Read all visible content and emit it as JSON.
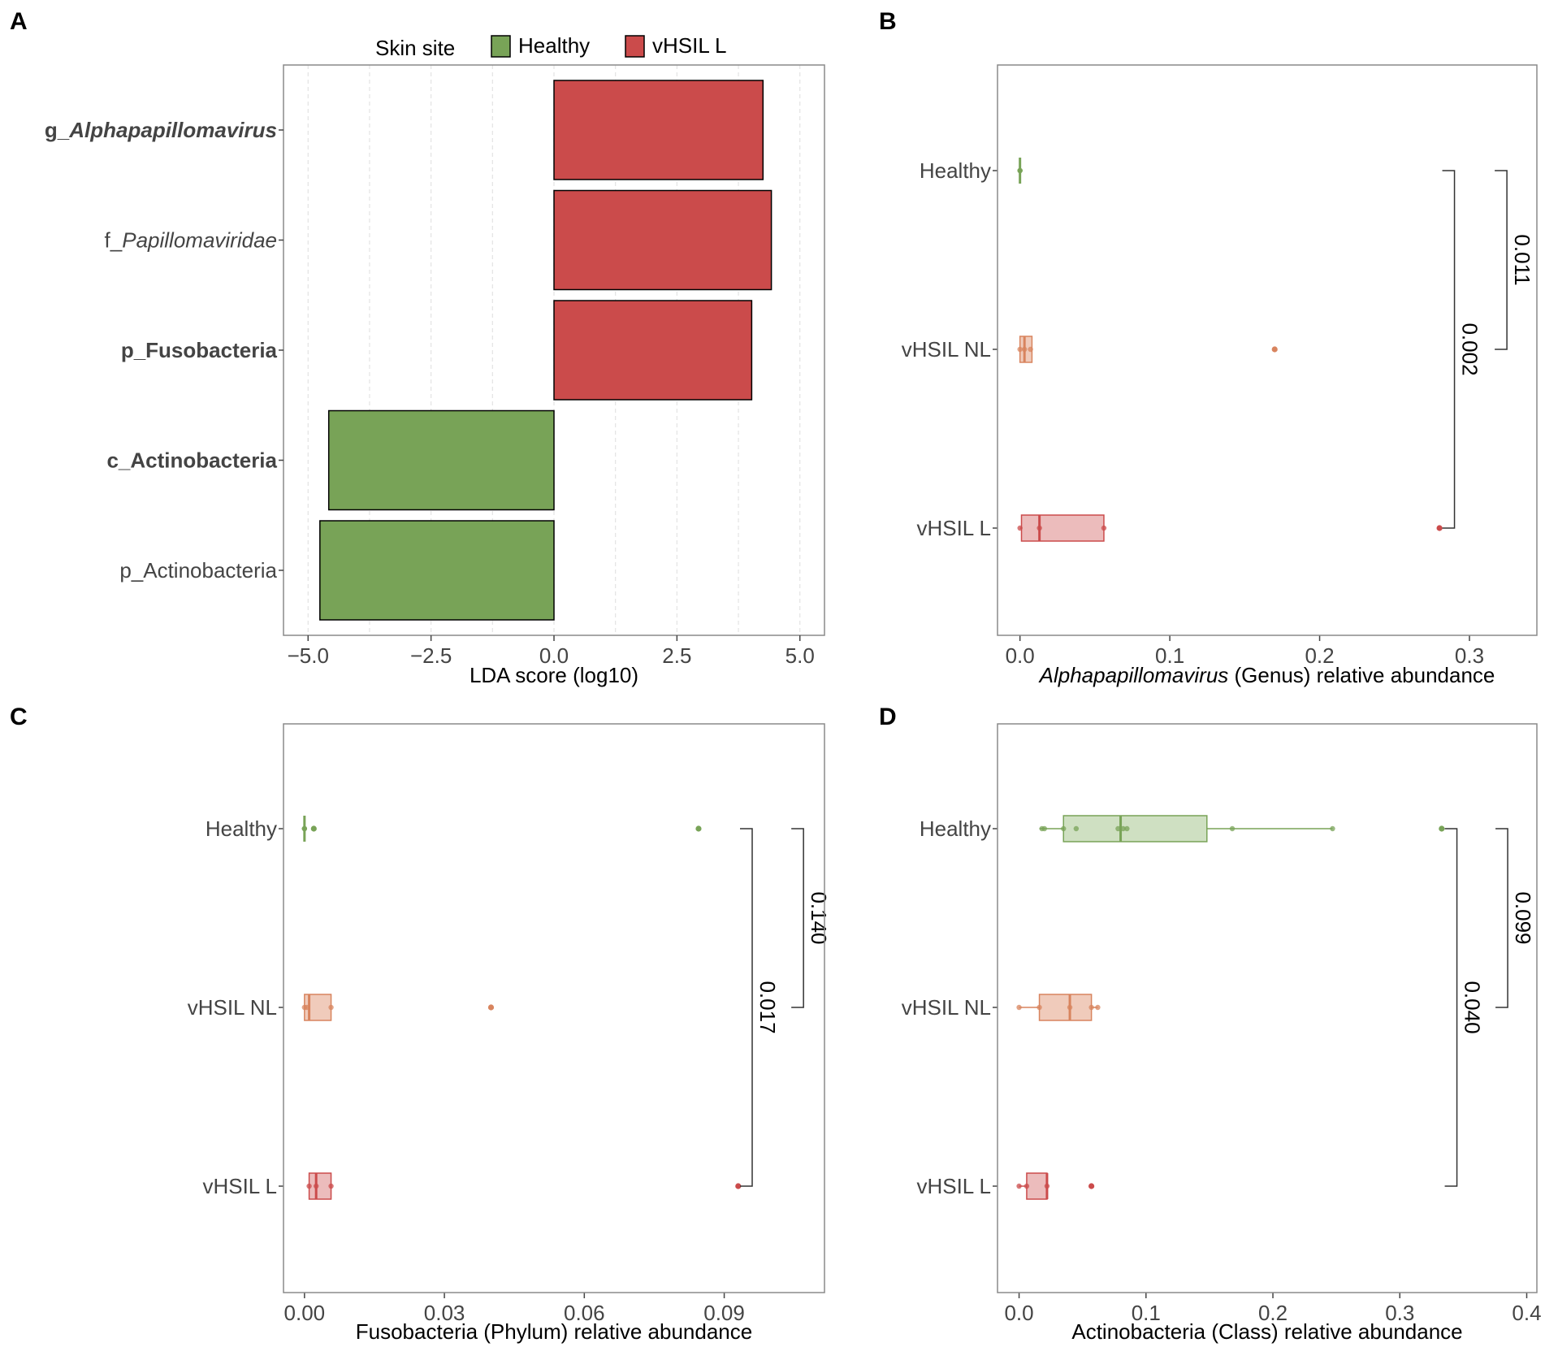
{
  "figure": {
    "panel_labels": [
      "A",
      "B",
      "C",
      "D"
    ]
  },
  "colors": {
    "healthy": "#78a357",
    "vhsil_nl": "#d8845e",
    "vhsil_l": "#cb4b4b",
    "healthy_fill": "#cfe0c2",
    "vhsil_nl_fill": "#f0cbbb",
    "vhsil_l_fill": "#ecbcbc",
    "axis": "#444444",
    "frame": "#8a8a8a",
    "grid": "#e3e3e3"
  },
  "chart_data": [
    {
      "panel": "A",
      "type": "bar",
      "orientation": "horizontal",
      "title": "",
      "categories": [
        "g_Alphapapillomavirus",
        "f_Papillomaviridae",
        "p_Fusobacteria",
        "c_Actinobacteria",
        "p_Actinobacteria"
      ],
      "category_labels": [
        {
          "prefix": "g_",
          "name": "Alphapapillomavirus",
          "italic": true,
          "bold": true
        },
        {
          "prefix": "f_",
          "name": "Papillomaviridae",
          "italic": true,
          "bold": false
        },
        {
          "prefix": "",
          "name": "p_Fusobacteria",
          "italic": false,
          "bold": true
        },
        {
          "prefix": "",
          "name": "c_Actinobacteria",
          "italic": false,
          "bold": true
        },
        {
          "prefix": "",
          "name": "p_Actinobacteria",
          "italic": false,
          "bold": false
        }
      ],
      "values": [
        4.25,
        4.42,
        4.02,
        -4.58,
        -4.76
      ],
      "groups": [
        "vHSIL L",
        "vHSIL L",
        "vHSIL L",
        "Healthy",
        "Healthy"
      ],
      "xlabel": "LDA score (log10)",
      "ylabel": "",
      "xlim": [
        -5.5,
        5.5
      ],
      "xticks": [
        -5.0,
        -2.5,
        0.0,
        2.5,
        5.0
      ],
      "xtick_labels": [
        "−5.0",
        "−2.5",
        "0.0",
        "2.5",
        "5.0"
      ],
      "grid": "vertical dashed",
      "legend": {
        "title": "Skin site",
        "position": "top",
        "entries": [
          "Healthy",
          "vHSIL L"
        ]
      }
    },
    {
      "panel": "B",
      "type": "boxplot",
      "orientation": "horizontal",
      "xlabel_italic": "Alphapapillomavirus",
      "xlabel_rest": " (Genus) relative abundance",
      "ylabel": "",
      "groups": [
        "Healthy",
        "vHSIL NL",
        "vHSIL L"
      ],
      "xlim": [
        -0.015,
        0.345
      ],
      "xticks": [
        0.0,
        0.1,
        0.2,
        0.3
      ],
      "xtick_labels": [
        "0.0",
        "0.1",
        "0.2",
        "0.3"
      ],
      "boxes": [
        {
          "group": "Healthy",
          "q1": 0.0,
          "median": 0.0,
          "q3": 0.0,
          "whisker_low": 0.0,
          "whisker_high": 0.0,
          "outliers": [],
          "points": [
            0.0,
            0.0,
            0.0
          ]
        },
        {
          "group": "vHSIL NL",
          "q1": 0.0,
          "median": 0.003,
          "q3": 0.008,
          "whisker_low": 0.0,
          "whisker_high": 0.008,
          "outliers": [
            0.17
          ],
          "points": [
            0.0,
            0.003,
            0.007
          ]
        },
        {
          "group": "vHSIL L",
          "q1": 0.001,
          "median": 0.013,
          "q3": 0.056,
          "whisker_low": 0.0,
          "whisker_high": 0.056,
          "outliers": [
            0.28
          ],
          "points": [
            0.0,
            0.013,
            0.056
          ]
        }
      ],
      "brackets": [
        {
          "from": "Healthy",
          "to": "vHSIL NL",
          "label": "0.011",
          "x": 0.325
        },
        {
          "from": "Healthy",
          "to": "vHSIL L",
          "label": "0.002",
          "x": 0.29
        }
      ]
    },
    {
      "panel": "C",
      "type": "boxplot",
      "orientation": "horizontal",
      "xlabel": "Fusobacteria (Phylum) relative abundance",
      "ylabel": "",
      "groups": [
        "Healthy",
        "vHSIL NL",
        "vHSIL L"
      ],
      "xlim": [
        -0.0045,
        0.1115
      ],
      "xticks": [
        0.0,
        0.03,
        0.06,
        0.09
      ],
      "xtick_labels": [
        "0.00",
        "0.03",
        "0.06",
        "0.09"
      ],
      "boxes": [
        {
          "group": "Healthy",
          "q1": 0.0,
          "median": 0.0,
          "q3": 0.0,
          "whisker_low": 0.0,
          "whisker_high": 0.0,
          "outliers": [
            0.0845,
            0.002
          ],
          "points": [
            0.0,
            0.0,
            0.0
          ]
        },
        {
          "group": "vHSIL NL",
          "q1": 0.0,
          "median": 0.001,
          "q3": 0.0057,
          "whisker_low": 0.0,
          "whisker_high": 0.0057,
          "outliers": [
            0.04
          ],
          "points": [
            0.0,
            0.0005,
            0.0057
          ]
        },
        {
          "group": "vHSIL L",
          "q1": 0.001,
          "median": 0.0025,
          "q3": 0.0057,
          "whisker_low": 0.001,
          "whisker_high": 0.0057,
          "outliers": [
            0.093
          ],
          "points": [
            0.001,
            0.0025,
            0.0057
          ]
        }
      ],
      "brackets": [
        {
          "from": "Healthy",
          "to": "vHSIL NL",
          "label": "0.140",
          "x": 0.107
        },
        {
          "from": "Healthy",
          "to": "vHSIL L",
          "label": "0.017",
          "x": 0.096
        }
      ]
    },
    {
      "panel": "D",
      "type": "boxplot",
      "orientation": "horizontal",
      "xlabel": "Actinobacteria (Class) relative abundance",
      "ylabel": "",
      "groups": [
        "Healthy",
        "vHSIL NL",
        "vHSIL L"
      ],
      "xlim": [
        -0.017,
        0.408
      ],
      "xticks": [
        0.0,
        0.1,
        0.2,
        0.3,
        0.4
      ],
      "xtick_labels": [
        "0.0",
        "0.1",
        "0.2",
        "0.3",
        "0.4"
      ],
      "boxes": [
        {
          "group": "Healthy",
          "q1": 0.035,
          "median": 0.08,
          "q3": 0.148,
          "whisker_low": 0.016,
          "whisker_high": 0.247,
          "outliers": [
            0.333
          ],
          "points": [
            0.018,
            0.02,
            0.035,
            0.045,
            0.078,
            0.082,
            0.085,
            0.168,
            0.247
          ]
        },
        {
          "group": "vHSIL NL",
          "q1": 0.016,
          "median": 0.04,
          "q3": 0.057,
          "whisker_low": 0.0,
          "whisker_high": 0.062,
          "outliers": [],
          "points": [
            0.0,
            0.016,
            0.04,
            0.057,
            0.062
          ]
        },
        {
          "group": "vHSIL L",
          "q1": 0.006,
          "median": 0.022,
          "q3": 0.022,
          "whisker_low": 0.0,
          "whisker_high": 0.022,
          "outliers": [
            0.057
          ],
          "points": [
            0.0,
            0.006,
            0.022
          ]
        }
      ],
      "brackets": [
        {
          "from": "Healthy",
          "to": "vHSIL NL",
          "label": "0.099",
          "x": 0.385
        },
        {
          "from": "Healthy",
          "to": "vHSIL L",
          "label": "0.040",
          "x": 0.345
        }
      ]
    }
  ]
}
